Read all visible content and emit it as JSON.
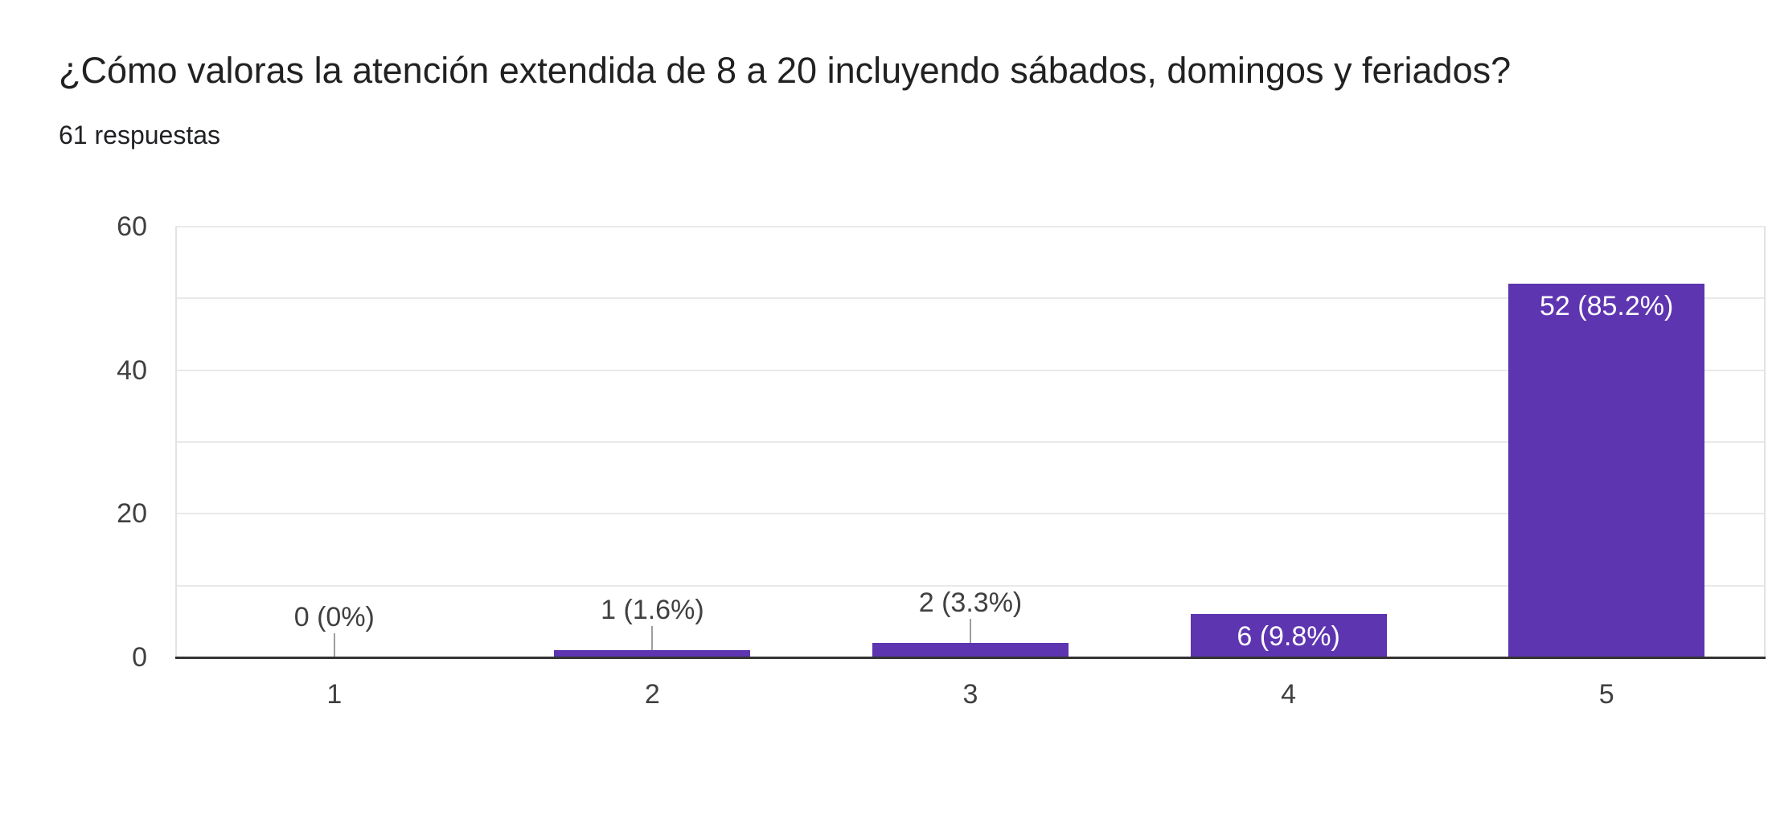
{
  "header": {
    "title": "¿Cómo valoras la atención extendida de 8 a 20 incluyendo sábados, domingos y feriados?",
    "subtitle": "61 respuestas"
  },
  "chart_data": {
    "type": "bar",
    "title": "¿Cómo valoras la atención extendida de 8 a 20 incluyendo sábados, domingos y feriados?",
    "subtitle": "61 respuestas",
    "total_responses": 61,
    "categories": [
      "1",
      "2",
      "3",
      "4",
      "5"
    ],
    "values": [
      0,
      1,
      2,
      6,
      52
    ],
    "bar_labels": [
      "0 (0%)",
      "1 (1.6%)",
      "2 (3.3%)",
      "6 (9.8%)",
      "52 (85.2%)"
    ],
    "bar_label_placement": [
      "above",
      "above",
      "above",
      "inside",
      "inside"
    ],
    "xlabel": "",
    "ylabel": "",
    "ylim": [
      0,
      60
    ],
    "yticks": [
      0,
      20,
      40,
      60
    ],
    "grid_step": 10,
    "grid": true,
    "legend": "none"
  },
  "colors": {
    "bar": "#5e35b1",
    "title_text": "#212121",
    "axis_text": "#404040",
    "annotation_outside": "#404040",
    "annotation_inside": "#ffffff",
    "gridline": "#e9e9e9",
    "baseline": "#333333",
    "stem": "#9e9e9e",
    "background": "#ffffff"
  }
}
